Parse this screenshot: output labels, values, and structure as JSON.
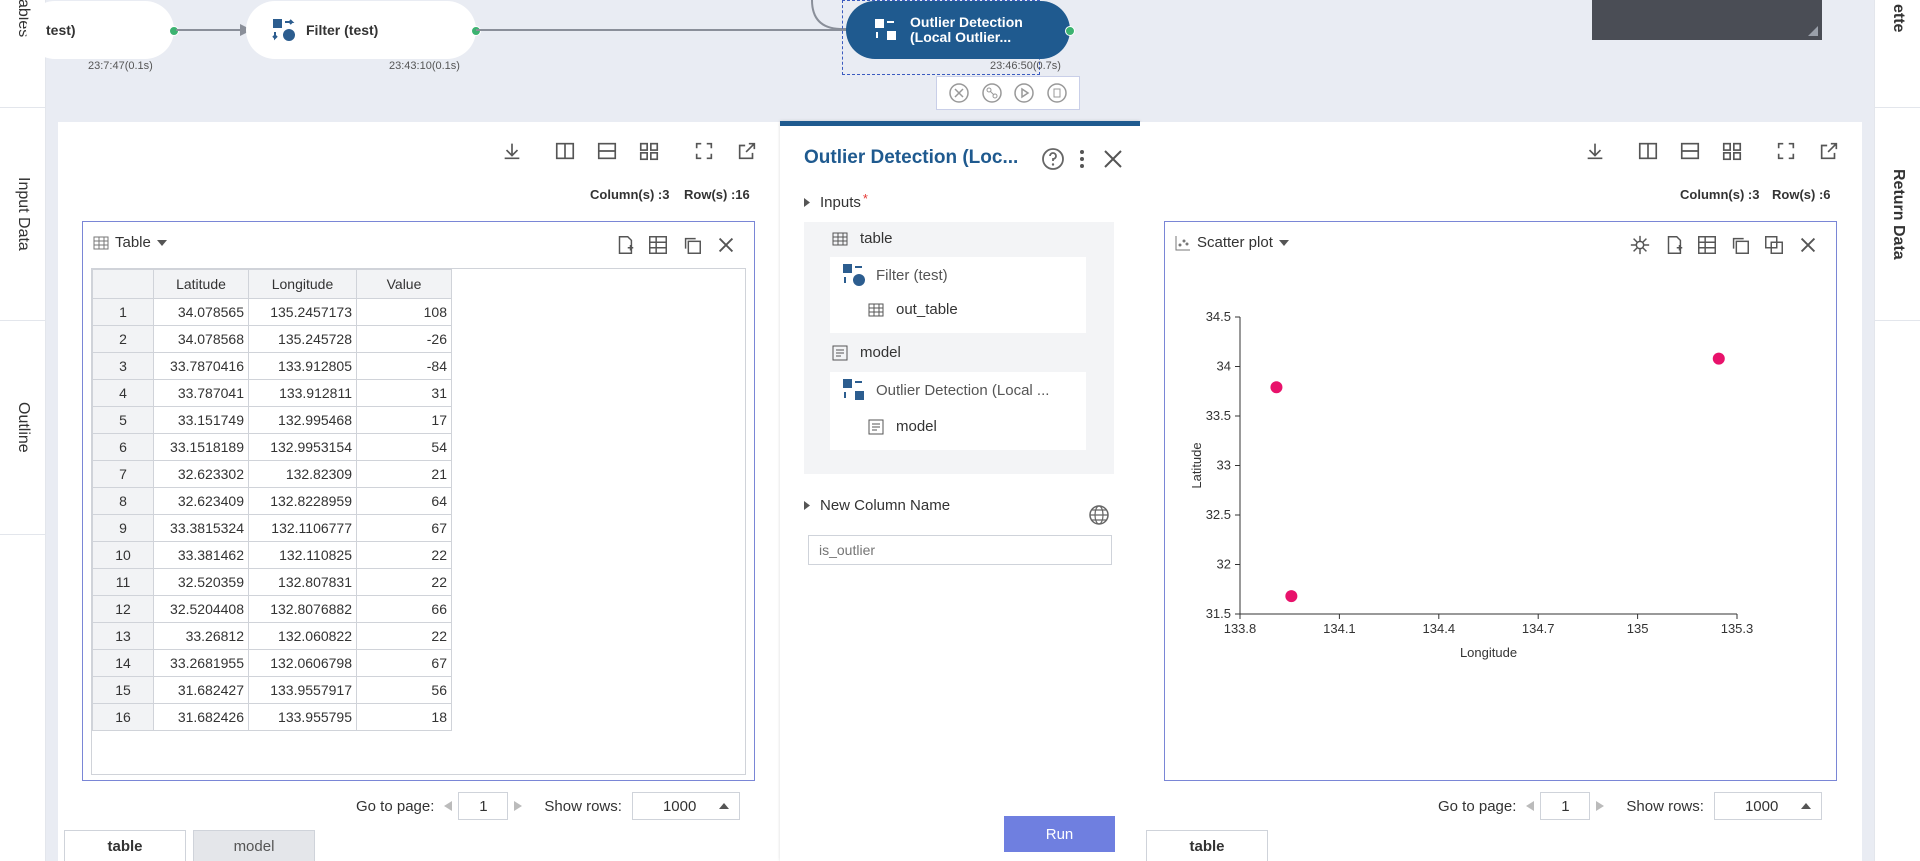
{
  "sidebar_left": {
    "tabs": [
      "ables",
      "Input Data",
      "Outline"
    ]
  },
  "sidebar_right": {
    "tabs": [
      "ette",
      "Return Data"
    ]
  },
  "pipeline": {
    "nodes": [
      {
        "label": "test)",
        "time": "23:7:47(0.1s)"
      },
      {
        "label": "Filter (test)",
        "time": "23:43:10(0.1s)"
      },
      {
        "label1": "Outlier Detection",
        "label2": "(Local Outlier...",
        "time": "23:46:50(0.7s)"
      }
    ]
  },
  "left_panel": {
    "meta": {
      "columns": "Column(s) :3",
      "rows": "Row(s) :16"
    },
    "view_label": "Table",
    "columns": [
      "Latitude",
      "Longitude",
      "Value"
    ],
    "rows": [
      [
        "1",
        "34.078565",
        "135.2457173",
        "108"
      ],
      [
        "2",
        "34.078568",
        "135.245728",
        "-26"
      ],
      [
        "3",
        "33.7870416",
        "133.912805",
        "-84"
      ],
      [
        "4",
        "33.787041",
        "133.912811",
        "31"
      ],
      [
        "5",
        "33.151749",
        "132.995468",
        "17"
      ],
      [
        "6",
        "33.1518189",
        "132.9953154",
        "54"
      ],
      [
        "7",
        "32.623302",
        "132.82309",
        "21"
      ],
      [
        "8",
        "32.623409",
        "132.8228959",
        "64"
      ],
      [
        "9",
        "33.3815324",
        "132.1106777",
        "67"
      ],
      [
        "10",
        "33.381462",
        "132.110825",
        "22"
      ],
      [
        "11",
        "32.520359",
        "132.807831",
        "22"
      ],
      [
        "12",
        "32.5204408",
        "132.8076882",
        "66"
      ],
      [
        "13",
        "33.26812",
        "132.060822",
        "22"
      ],
      [
        "14",
        "33.2681955",
        "132.0606798",
        "67"
      ],
      [
        "15",
        "31.682427",
        "133.9557917",
        "56"
      ],
      [
        "16",
        "31.682426",
        "133.955795",
        "18"
      ]
    ],
    "pager": {
      "goto_label": "Go to page:",
      "page": "1",
      "show_rows_label": "Show rows:",
      "show_rows": "1000"
    },
    "tabs": [
      "table",
      "model"
    ]
  },
  "middle_panel": {
    "title": "Outlier Detection (Loc...",
    "inputs_label": "Inputs",
    "required_mark": "*",
    "table_label": "table",
    "filter_label": "Filter (test)",
    "out_table_label": "out_table",
    "model_label": "model",
    "outlier_label": "Outlier Detection (Local ...",
    "model_sub_label": "model",
    "new_column_label": "New Column Name",
    "new_column_placeholder": "is_outlier",
    "run_label": "Run"
  },
  "right_panel": {
    "meta": {
      "columns": "Column(s) :3",
      "rows": "Row(s) :6"
    },
    "view_label": "Scatter plot",
    "pager": {
      "goto_label": "Go to page:",
      "page": "1",
      "show_rows_label": "Show rows:",
      "show_rows": "1000"
    },
    "tabs": [
      "table"
    ]
  },
  "chart_data": {
    "type": "scatter",
    "xlabel": "Longitude",
    "ylabel": "Latitude",
    "xlim": [
      133.8,
      135.3
    ],
    "ylim": [
      31.5,
      34.5
    ],
    "xticks": [
      "133.8",
      "134.1",
      "134.4",
      "134.7",
      "135",
      "135.3"
    ],
    "yticks": [
      "31.5",
      "32",
      "32.5",
      "33",
      "33.5",
      "34",
      "34.5"
    ],
    "marker_color": "#e8126b",
    "points": [
      {
        "x": 133.91,
        "y": 33.79
      },
      {
        "x": 133.955,
        "y": 31.68
      },
      {
        "x": 135.245,
        "y": 34.08
      }
    ]
  }
}
